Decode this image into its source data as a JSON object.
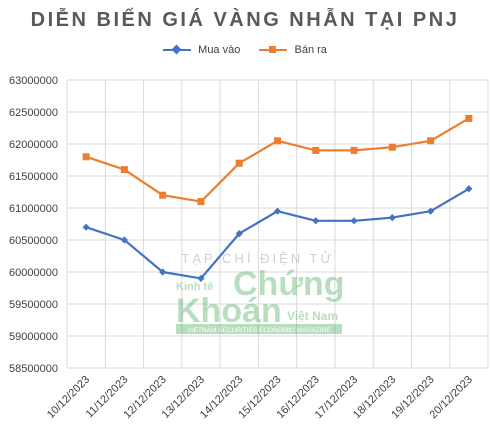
{
  "chart_data": {
    "type": "line",
    "title": "DIỄN BIẾN GIÁ VÀNG NHẪN TẠI PNJ",
    "categories": [
      "10/12/2023",
      "11/12/2023",
      "12/12/2023",
      "13/12/2023",
      "14/12/2023",
      "15/12/2023",
      "16/12/2023",
      "17/12/2023",
      "18/12/2023",
      "19/12/2023",
      "20/12/2023"
    ],
    "series": [
      {
        "name": "Mua vào",
        "color": "#4472C4",
        "marker": "diamond",
        "values": [
          60700000,
          60500000,
          60000000,
          59900000,
          60600000,
          60950000,
          60800000,
          60800000,
          60850000,
          60950000,
          61300000
        ]
      },
      {
        "name": "Bán ra",
        "color": "#ED7D31",
        "marker": "square",
        "values": [
          61800000,
          61600000,
          61200000,
          61100000,
          61700000,
          62050000,
          61900000,
          61900000,
          61950000,
          62050000,
          62400000
        ]
      }
    ],
    "ylim": [
      58500000,
      63000000
    ],
    "yticks": [
      "58500000",
      "59000000",
      "59500000",
      "60000000",
      "60500000",
      "61000000",
      "61500000",
      "62000000",
      "62500000",
      "63000000"
    ],
    "grid": true,
    "legend_position": "top"
  },
  "watermark": {
    "line1": "TẠP CHÍ ĐIỆN TỬ",
    "brand_small": "Kinh tế",
    "brand_big_1": "Chứng",
    "brand_big_2": "Khoán",
    "brand_country": "Việt Nam",
    "tagline": "VIETNAM SECURITIES ECONOMIC MAGAZINE"
  }
}
